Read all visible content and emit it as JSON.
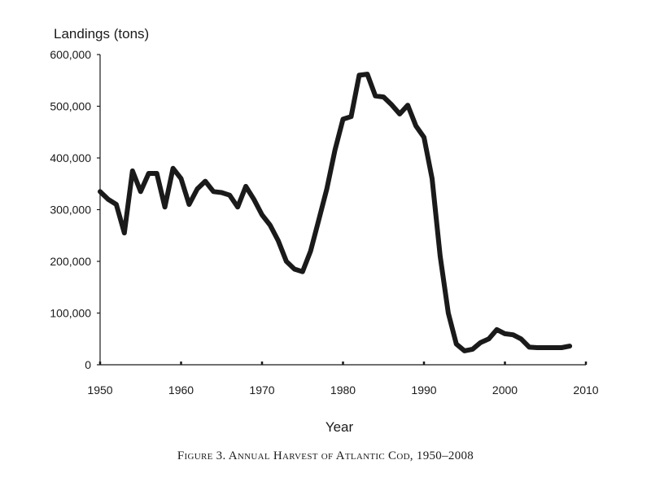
{
  "chart_data": {
    "type": "line",
    "ylabel": "Landings (tons)",
    "xlabel": "Year",
    "caption": "Figure 3. Annual Harvest of Atlantic Cod, 1950–2008",
    "xlim": [
      1950,
      2010
    ],
    "ylim": [
      0,
      600000
    ],
    "x_ticks": [
      1950,
      1960,
      1970,
      1980,
      1990,
      2000,
      2010
    ],
    "y_ticks": [
      0,
      100000,
      200000,
      300000,
      400000,
      500000,
      600000
    ],
    "x_tick_labels": [
      "1950",
      "1960",
      "1970",
      "1980",
      "1990",
      "2000",
      "2010"
    ],
    "y_tick_labels": [
      "0",
      "100,000",
      "200,000",
      "300,000",
      "400,000",
      "500,000",
      "600,000"
    ],
    "line_color": "#1a1a1a",
    "grid": false,
    "series": [
      {
        "x": [
          1950,
          1951,
          1952,
          1953,
          1954,
          1955,
          1956,
          1957,
          1958,
          1959,
          1960,
          1961,
          1962,
          1963,
          1964,
          1965,
          1966,
          1967,
          1968,
          1969,
          1970,
          1971,
          1972,
          1973,
          1974,
          1975,
          1976,
          1977,
          1978,
          1979,
          1980,
          1981,
          1982,
          1983,
          1984,
          1985,
          1986,
          1987,
          1988,
          1989,
          1990,
          1991,
          1992,
          1993,
          1994,
          1995,
          1996,
          1997,
          1998,
          1999,
          2000,
          2001,
          2002,
          2003,
          2004,
          2005,
          2006,
          2007,
          2008
        ],
        "y": [
          335000,
          320000,
          310000,
          255000,
          375000,
          335000,
          370000,
          370000,
          305000,
          380000,
          360000,
          310000,
          340000,
          355000,
          335000,
          333000,
          328000,
          305000,
          345000,
          320000,
          290000,
          270000,
          240000,
          200000,
          185000,
          180000,
          220000,
          280000,
          340000,
          415000,
          475000,
          480000,
          560000,
          562000,
          520000,
          518000,
          503000,
          485000,
          502000,
          462000,
          440000,
          360000,
          210000,
          100000,
          40000,
          27000,
          30000,
          43000,
          50000,
          68000,
          60000,
          58000,
          50000,
          34000,
          33000,
          33000,
          33000,
          33000,
          36000
        ]
      }
    ]
  }
}
